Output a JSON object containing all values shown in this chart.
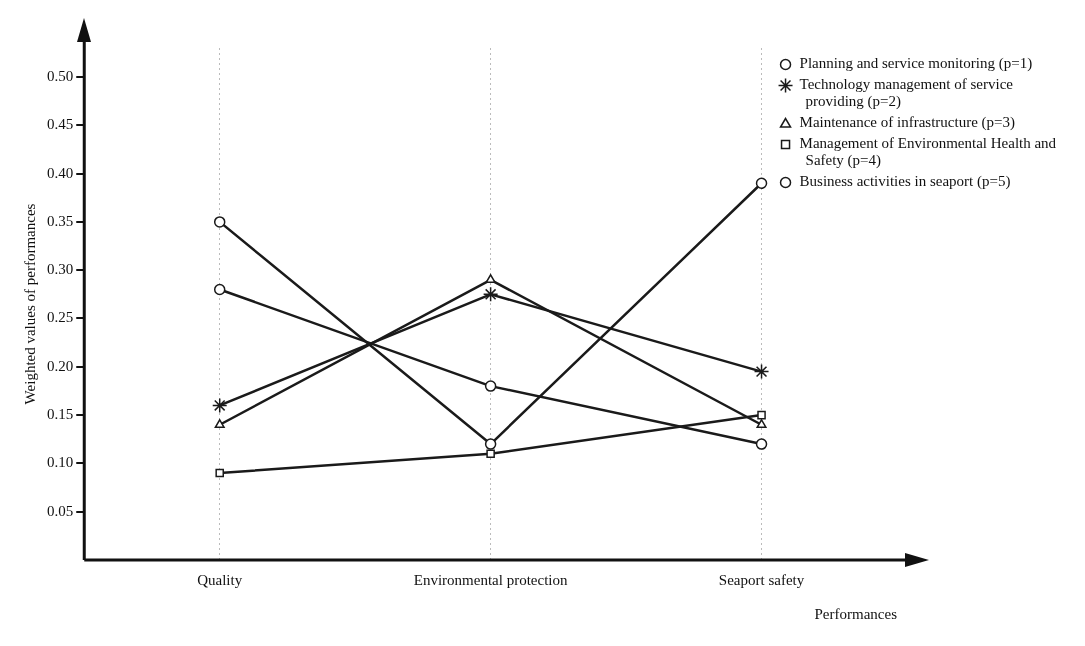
{
  "chart_data": {
    "type": "line",
    "xlabel": "Performances",
    "ylabel": "Weighted values of performances",
    "categories": [
      "Quality",
      "Environmental protection",
      "Seaport safety"
    ],
    "ylim": [
      0,
      0.53
    ],
    "yticks": [
      {
        "value": 0.05,
        "label": "0.05"
      },
      {
        "value": 0.1,
        "label": "0.10"
      },
      {
        "value": 0.15,
        "label": "0.15"
      },
      {
        "value": 0.2,
        "label": "0.20"
      },
      {
        "value": 0.25,
        "label": "0.25"
      },
      {
        "value": 0.3,
        "label": "0.30"
      },
      {
        "value": 0.35,
        "label": "0.35"
      },
      {
        "value": 0.4,
        "label": "0.40"
      },
      {
        "value": 0.45,
        "label": "0.45"
      },
      {
        "value": 0.5,
        "label": "0.50"
      }
    ],
    "grid": "x",
    "legend": "top right",
    "line_style": "solid",
    "series": [
      {
        "name": "Planning and service monitoring (p=1)",
        "color": "#1a1a1a",
        "marker": "circle",
        "values": [
          0.28,
          0.18,
          0.12
        ]
      },
      {
        "name": "Technology management of service providing (p=2)",
        "color": "#1a1a1a",
        "marker": "cross",
        "values": [
          0.16,
          0.275,
          0.195
        ]
      },
      {
        "name": "Maintenance of infrastructure (p=3)",
        "color": "#1a1a1a",
        "marker": "triangle",
        "values": [
          0.14,
          0.29,
          0.14
        ]
      },
      {
        "name": "Management of Environmental Health and Safety (p=4)",
        "color": "#1a1a1a",
        "marker": "square",
        "values": [
          0.09,
          0.11,
          0.15
        ]
      },
      {
        "name": "Business activities in seaport (p=5)",
        "color": "#1a1a1a",
        "marker": "circle",
        "values": [
          0.35,
          0.12,
          0.39
        ]
      }
    ]
  }
}
